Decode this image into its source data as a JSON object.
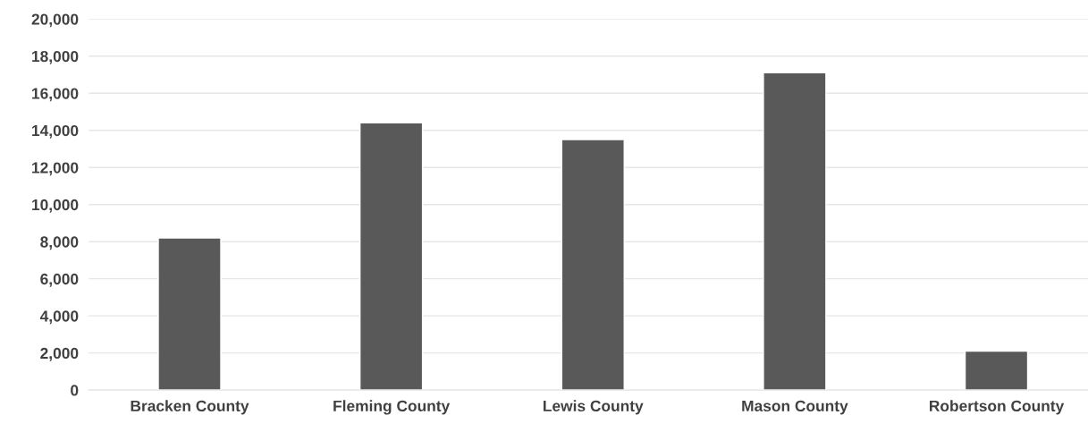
{
  "chart_data": {
    "type": "bar",
    "categories": [
      "Bracken County",
      "Fleming County",
      "Lewis County",
      "Mason County",
      "Robertson County"
    ],
    "values": [
      8200,
      14400,
      13500,
      17100,
      2100
    ],
    "color": "#595959",
    "ylim": [
      0,
      20000
    ],
    "yticks": [
      {
        "value": 0,
        "label": "0"
      },
      {
        "value": 2000,
        "label": "2,000"
      },
      {
        "value": 4000,
        "label": "4,000"
      },
      {
        "value": 6000,
        "label": "6,000"
      },
      {
        "value": 8000,
        "label": "8,000"
      },
      {
        "value": 10000,
        "label": "10,000"
      },
      {
        "value": 12000,
        "label": "12,000"
      },
      {
        "value": 14000,
        "label": "14,000"
      },
      {
        "value": 16000,
        "label": "16,000"
      },
      {
        "value": 18000,
        "label": "18,000"
      },
      {
        "value": 20000,
        "label": "20,000"
      }
    ],
    "grid": "y"
  }
}
